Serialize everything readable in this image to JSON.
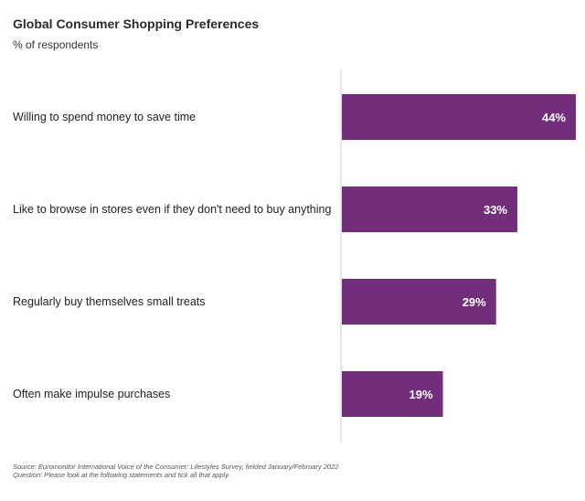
{
  "chart_data": {
    "type": "bar",
    "orientation": "horizontal",
    "title": "Global Consumer Shopping Preferences",
    "subtitle": "% of respondents",
    "categories": [
      "Willing to spend money to save time",
      "Like to browse in stores even if they don't need to buy anything",
      "Regularly buy themselves small treats",
      "Often make impulse purchases"
    ],
    "values": [
      44,
      33,
      29,
      19
    ],
    "value_labels": [
      "44%",
      "33%",
      "29%",
      "19%"
    ],
    "xlim": [
      0,
      44
    ],
    "bar_color": "#722e7a",
    "axis_color": "#cccccc",
    "grid": false,
    "legend": "none"
  },
  "footer": {
    "source": "Source: Euromonitor International Voice of the Consumer: Lifestyles Survey, fielded January/February 2022",
    "question": "Question: Please look at the following statements and tick all that apply."
  }
}
